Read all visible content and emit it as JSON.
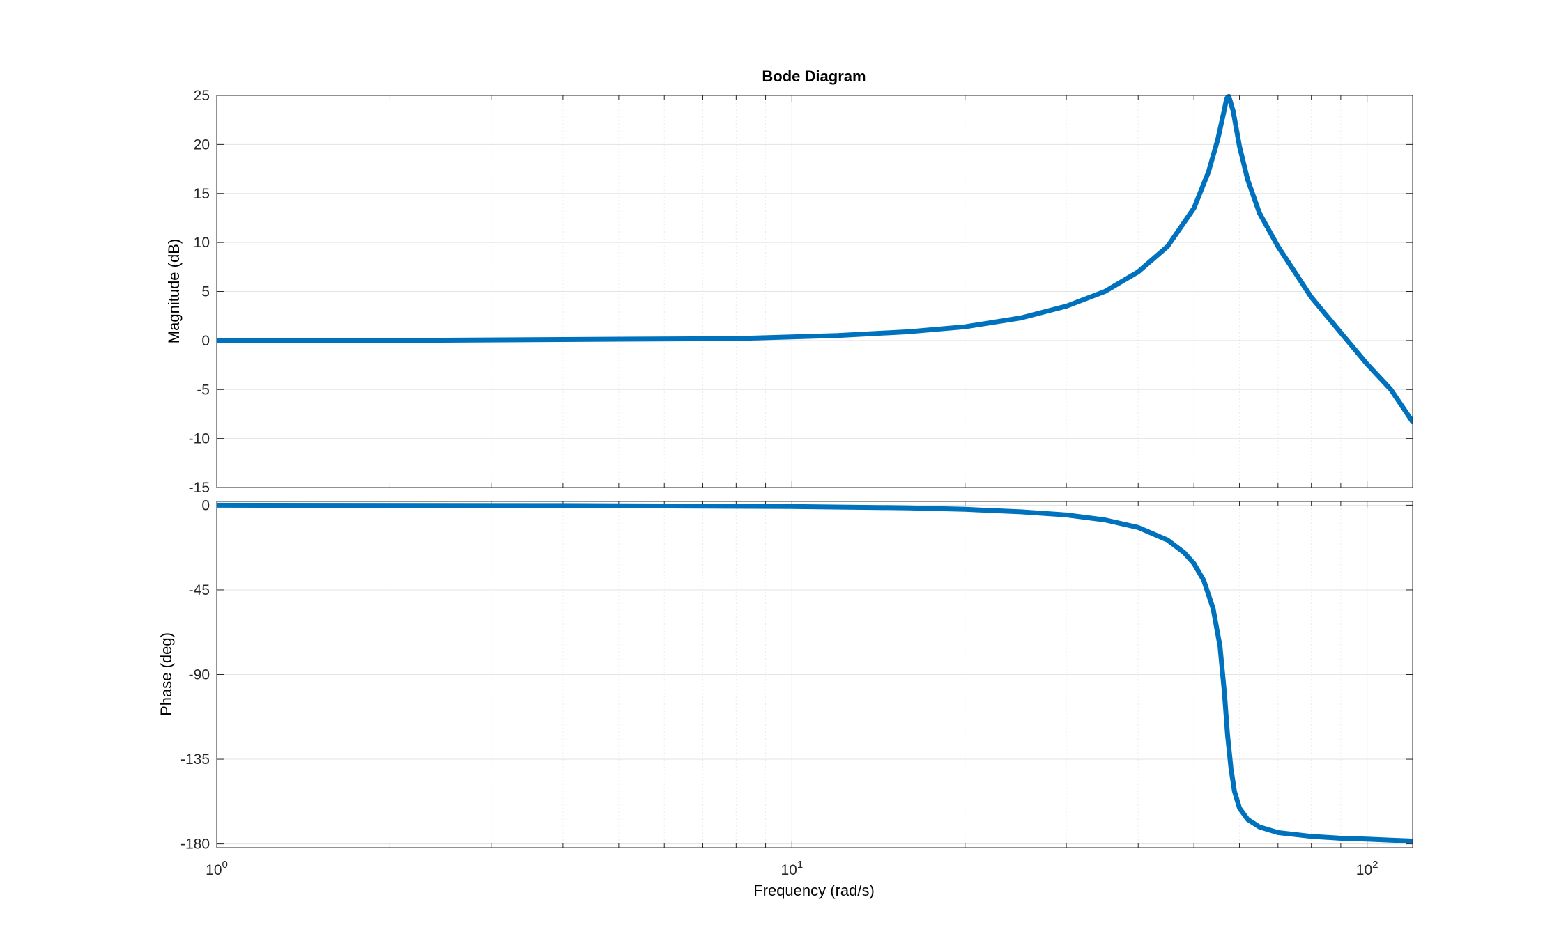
{
  "chart_data": {
    "type": "line",
    "title": "Bode Diagram",
    "xlabel": "Frequency  (rad/s)",
    "xscale": "log",
    "xlim": [
      1,
      120
    ],
    "x_ticks": [
      {
        "base": "10",
        "exp": "0"
      },
      {
        "base": "10",
        "exp": "1"
      },
      {
        "base": "10",
        "exp": "2"
      }
    ],
    "grid": true,
    "line_color": "#0072BD",
    "subplots": [
      {
        "name": "magnitude",
        "ylabel": "Magnitude (dB)",
        "ylim": [
          -15,
          25
        ],
        "yticks": [
          "25",
          "20",
          "15",
          "10",
          "5",
          "0",
          "-5",
          "-10",
          "-15"
        ],
        "x": [
          1,
          2,
          4,
          8,
          12,
          16,
          20,
          25,
          30,
          35,
          40,
          45,
          50,
          53,
          55,
          56.5,
          57,
          57.5,
          58.5,
          60,
          62,
          65,
          70,
          80,
          90,
          100,
          110,
          120
        ],
        "y": [
          0.0,
          0.0,
          0.1,
          0.2,
          0.5,
          0.9,
          1.4,
          2.3,
          3.5,
          5.0,
          7.0,
          9.6,
          13.5,
          17.2,
          20.5,
          23.6,
          24.7,
          24.9,
          23.4,
          19.8,
          16.4,
          13.0,
          9.6,
          4.4,
          0.8,
          -2.4,
          -5.0,
          -8.3
        ]
      },
      {
        "name": "phase",
        "ylabel": "Phase (deg)",
        "ylim": [
          -182,
          2
        ],
        "yticks": [
          "0",
          "-45",
          "-90",
          "-135",
          "-180"
        ],
        "x": [
          1,
          4,
          10,
          16,
          20,
          25,
          30,
          35,
          40,
          45,
          48,
          50,
          52,
          54,
          55.5,
          56.5,
          57.2,
          58,
          58.8,
          60,
          62,
          65,
          70,
          80,
          90,
          100,
          110,
          120
        ],
        "y": [
          0.0,
          -0.2,
          -0.7,
          -1.4,
          -2.2,
          -3.5,
          -5.2,
          -7.8,
          -11.8,
          -18.5,
          -25.0,
          -31.0,
          -40.0,
          -55.0,
          -75.0,
          -100.0,
          -122.0,
          -140.0,
          -152.0,
          -161.0,
          -167.0,
          -171.0,
          -174.0,
          -176.0,
          -177.0,
          -177.5,
          -178.0,
          -178.5
        ]
      }
    ]
  }
}
